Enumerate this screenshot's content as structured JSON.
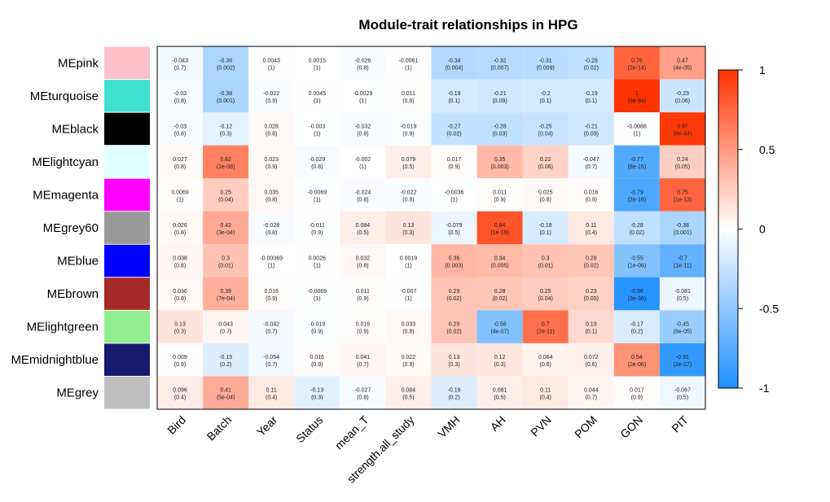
{
  "chart_data": {
    "type": "heatmap",
    "title": "Module-trait relationships in HPG",
    "rows": [
      "MEpink",
      "MEturquoise",
      "MEblack",
      "MElightcyan",
      "MEmagenta",
      "MEgrey60",
      "MEblue",
      "MEbrown",
      "MElightgreen",
      "MEmidnightblue",
      "MEgrey"
    ],
    "row_colors": [
      "#FFC0CB",
      "#40E0D0",
      "#000000",
      "#E0FFFF",
      "#FF00FF",
      "#999999",
      "#0000FF",
      "#A52A2A",
      "#90EE90",
      "#191970",
      "#BEBEBE"
    ],
    "columns": [
      "Bird",
      "Batch",
      "Year",
      "Status",
      "mean_T",
      "strength.all_study",
      "VMH",
      "AH",
      "PVN",
      "POM",
      "GON",
      "PIT"
    ],
    "values": [
      [
        -0.043,
        -0.36,
        0.0043,
        0.0015,
        -0.026,
        -0.0061,
        -0.34,
        -0.32,
        -0.31,
        -0.28,
        0.76,
        0.47
      ],
      [
        -0.03,
        -0.38,
        -0.022,
        0.0045,
        -0.0029,
        0.011,
        -0.19,
        -0.21,
        -0.2,
        -0.19,
        1,
        -0.23
      ],
      [
        -0.03,
        -0.12,
        0.028,
        -0.003,
        -0.032,
        -0.019,
        -0.27,
        -0.28,
        -0.25,
        -0.21,
        -0.0088,
        0.97
      ],
      [
        0.027,
        0.62,
        0.023,
        -0.029,
        -0.002,
        0.079,
        0.017,
        0.35,
        0.22,
        -0.047,
        -0.77,
        0.24
      ],
      [
        0.0069,
        0.25,
        0.035,
        -0.0069,
        -0.024,
        -0.022,
        -0.0036,
        0.011,
        0.025,
        0.016,
        -0.79,
        0.75
      ],
      [
        0.026,
        0.42,
        -0.028,
        -0.011,
        0.084,
        0.13,
        -0.079,
        0.84,
        -0.18,
        0.11,
        -0.28,
        -0.38
      ],
      [
        0.038,
        0.3,
        -0.00069,
        0.0026,
        0.032,
        0.0019,
        0.36,
        0.34,
        0.3,
        0.28,
        -0.55,
        -0.7
      ],
      [
        0.036,
        0.39,
        0.016,
        -0.0069,
        0.011,
        -0.007,
        0.29,
        0.28,
        0.25,
        0.23,
        -0.96,
        -0.081
      ],
      [
        0.13,
        0.043,
        -0.042,
        -0.019,
        0.016,
        0.033,
        0.29,
        -0.56,
        0.7,
        0.19,
        -0.17,
        -0.45
      ],
      [
        0.009,
        -0.15,
        -0.054,
        0.016,
        0.041,
        0.022,
        0.13,
        0.12,
        0.064,
        0.072,
        0.54,
        -0.91
      ],
      [
        0.096,
        0.41,
        0.11,
        -0.13,
        -0.027,
        0.084,
        -0.16,
        0.081,
        0.11,
        0.044,
        0.017,
        -0.067
      ]
    ],
    "value_labels": [
      [
        "-0.043",
        "-0.36",
        "0.0043",
        "0.0015",
        "-0.026",
        "-0.0061",
        "-0.34",
        "-0.32",
        "-0.31",
        "-0.28",
        "0.76",
        "0.47"
      ],
      [
        "-0.03",
        "-0.38",
        "-0.022",
        "0.0045",
        "-0.0029",
        "0.011",
        "-0.19",
        "-0.21",
        "-0.2",
        "-0.19",
        "1",
        "-0.23"
      ],
      [
        "-0.03",
        "-0.12",
        "0.028",
        "-0.003",
        "-0.032",
        "-0.019",
        "-0.27",
        "-0.28",
        "-0.25",
        "-0.21",
        "-0.0088",
        "0.97"
      ],
      [
        "0.027",
        "0.62",
        "0.023",
        "-0.029",
        "-0.002",
        "0.079",
        "0.017",
        "0.35",
        "0.22",
        "-0.047",
        "-0.77",
        "0.24"
      ],
      [
        "0.0069",
        "0.25",
        "0.035",
        "-0.0069",
        "-0.024",
        "-0.022",
        "-0.0036",
        "0.011",
        "0.025",
        "0.016",
        "-0.79",
        "0.75"
      ],
      [
        "0.026",
        "0.42",
        "-0.028",
        "-0.011",
        "0.084",
        "0.13",
        "-0.079",
        "0.84",
        "-0.18",
        "0.11",
        "-0.28",
        "-0.38"
      ],
      [
        "0.038",
        "0.3",
        "-0.00069",
        "0.0026",
        "0.032",
        "0.0019",
        "0.36",
        "0.34",
        "0.3",
        "0.28",
        "-0.55",
        "-0.7"
      ],
      [
        "0.036",
        "0.39",
        "0.016",
        "-0.0069",
        "0.011",
        "-0.007",
        "0.29",
        "0.28",
        "0.25",
        "0.23",
        "-0.96",
        "-0.081"
      ],
      [
        "0.13",
        "0.043",
        "-0.042",
        "-0.019",
        "0.016",
        "0.033",
        "0.29",
        "-0.56",
        "0.7",
        "0.19",
        "-0.17",
        "-0.45"
      ],
      [
        "0.009",
        "-0.15",
        "-0.054",
        "0.016",
        "0.041",
        "0.022",
        "0.13",
        "0.12",
        "0.064",
        "0.072",
        "0.54",
        "-0.91"
      ],
      [
        "0.096",
        "0.41",
        "0.11",
        "-0.13",
        "-0.027",
        "0.084",
        "-0.16",
        "0.081",
        "0.11",
        "0.044",
        "0.017",
        "-0.067"
      ]
    ],
    "pvalues": [
      [
        "(0.7)",
        "(0.002)",
        "(1)",
        "(1)",
        "(0.8)",
        "(1)",
        "(0.004)",
        "(0.007)",
        "(0.009)",
        "(0.02)",
        "(2e-14)",
        "(4e-05)"
      ],
      [
        "(0.8)",
        "(0.001)",
        "(0.9)",
        "(1)",
        "(1)",
        "(0.9)",
        "(0.1)",
        "(0.09)",
        "(0.1)",
        "(0.1)",
        "(8e-94)",
        "(0.06)"
      ],
      [
        "(0.8)",
        "(0.3)",
        "(0.8)",
        "(1)",
        "(0.8)",
        "(0.9)",
        "(0.02)",
        "(0.03)",
        "(0.04)",
        "(0.09)",
        "(1)",
        "(8e-44)"
      ],
      [
        "(0.8)",
        "(1e-08)",
        "(0.9)",
        "(0.8)",
        "(1)",
        "(0.5)",
        "(0.9)",
        "(0.003)",
        "(0.06)",
        "(0.7)",
        "(8e-15)",
        "(0.05)"
      ],
      [
        "(1)",
        "(0.04)",
        "(0.8)",
        "(1)",
        "(0.8)",
        "(0.9)",
        "(1)",
        "(0.9)",
        "(0.8)",
        "(0.9)",
        "(2e-16)",
        "(1e-13)"
      ],
      [
        "(0.8)",
        "(3e-04)",
        "(0.8)",
        "(0.9)",
        "(0.5)",
        "(0.3)",
        "(0.5)",
        "(1e-19)",
        "(0.1)",
        "(0.4)",
        "(0.02)",
        "(0.001)"
      ],
      [
        "(0.8)",
        "(0.01)",
        "(1)",
        "(1)",
        "(0.8)",
        "(1)",
        "(0.003)",
        "(0.005)",
        "(0.01)",
        "(0.02)",
        "(1e-06)",
        "(1e-11)"
      ],
      [
        "(0.8)",
        "(7e-04)",
        "(0.9)",
        "(1)",
        "(0.9)",
        "(1)",
        "(0.02)",
        "(0.02)",
        "(0.04)",
        "(0.05)",
        "(3e-38)",
        "(0.5)"
      ],
      [
        "(0.3)",
        "(0.7)",
        "(0.7)",
        "(0.9)",
        "(0.9)",
        "(0.8)",
        "(0.02)",
        "(4e-07)",
        "(2e-11)",
        "(0.1)",
        "(0.2)",
        "(8e-05)"
      ],
      [
        "(0.9)",
        "(0.2)",
        "(0.7)",
        "(0.9)",
        "(0.7)",
        "(0.9)",
        "(0.3)",
        "(0.3)",
        "(0.6)",
        "(0.6)",
        "(2e-06)",
        "(2e-27)"
      ],
      [
        "(0.4)",
        "(5e-04)",
        "(0.4)",
        "(0.3)",
        "(0.8)",
        "(0.5)",
        "(0.2)",
        "(0.5)",
        "(0.4)",
        "(0.7)",
        "(0.9)",
        "(0.5)"
      ]
    ],
    "color_range": [
      -1,
      1
    ],
    "color_low": "#1E90FF",
    "color_mid": "#FFFFFF",
    "color_high": "#FF3300",
    "legend": {
      "ticks": [
        1,
        0.5,
        0,
        -0.5,
        -1
      ],
      "tick_labels": [
        "1",
        "0.5",
        "0",
        "-0.5",
        "-1"
      ],
      "placement": "right"
    }
  }
}
